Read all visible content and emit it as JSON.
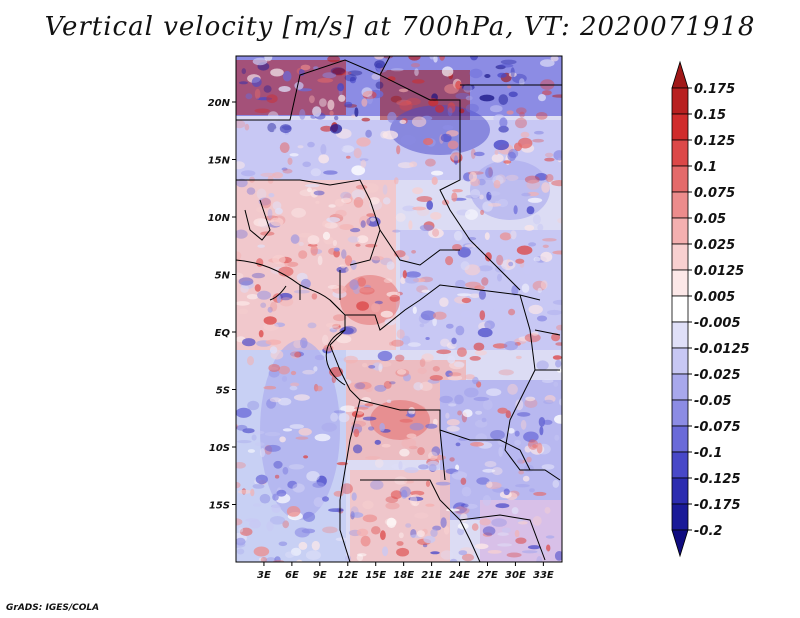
{
  "title": "Vertical velocity [m/s] at 700hPa, VT: 2020071918",
  "credit": "GrADS: IGES/COLA",
  "map": {
    "lon_range": [
      0,
      35
    ],
    "lat_range": [
      -20,
      24
    ],
    "lon_ticks": [
      "3E",
      "6E",
      "9E",
      "12E",
      "15E",
      "18E",
      "21E",
      "24E",
      "27E",
      "30E",
      "33E"
    ],
    "lat_ticks": [
      "20N",
      "15N",
      "10N",
      "5N",
      "EQ",
      "5S",
      "10S",
      "15S"
    ]
  },
  "colorbar": {
    "levels": [
      "0.175",
      "0.15",
      "0.125",
      "0.1",
      "0.075",
      "0.05",
      "0.025",
      "0.0125",
      "0.005",
      "-0.005",
      "-0.0125",
      "-0.025",
      "-0.05",
      "-0.075",
      "-0.1",
      "-0.125",
      "-0.175",
      "-0.2"
    ],
    "colors": [
      "#a01818",
      "#b82020",
      "#d02c2c",
      "#dc4848",
      "#e46a6a",
      "#ec8c8c",
      "#f4b0b0",
      "#f8d0d0",
      "#fce8e8",
      "#ffffff",
      "#e0e0f8",
      "#c8c8f4",
      "#a8a8ec",
      "#8c8ce4",
      "#6a6ad8",
      "#4848c8",
      "#2c2cb0",
      "#1a1a98",
      "#100c80"
    ]
  }
}
